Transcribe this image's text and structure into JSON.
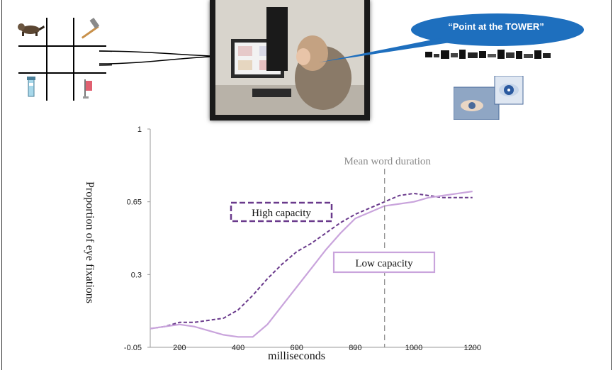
{
  "speech": {
    "quote": "“Point at the TOWER”"
  },
  "grid_icons": [
    "raccoon-icon",
    "hammer-icon",
    "tower-icon",
    "flag-icon"
  ],
  "colors": {
    "high": "#6a3a8c",
    "low": "#c9a4dc",
    "bubble": "#1e6fbe",
    "duration_line": "#888888"
  },
  "chart_data": {
    "type": "line",
    "title": "",
    "xlabel": "milliseconds",
    "ylabel": "Proportion of eye fixations",
    "xlim": [
      100,
      1220
    ],
    "ylim": [
      -0.05,
      1
    ],
    "x_ticks": [
      "200",
      "400",
      "600",
      "800",
      "1000",
      "1200"
    ],
    "y_ticks": [
      "1",
      "0.65",
      "0.3",
      "-0.05"
    ],
    "annotation": {
      "text": "Mean word duration",
      "x": 900
    },
    "series": [
      {
        "name": "High capacity",
        "style": "dashed",
        "x": [
          100,
          150,
          200,
          250,
          300,
          350,
          400,
          450,
          500,
          550,
          600,
          650,
          700,
          750,
          800,
          850,
          900,
          950,
          1000,
          1050,
          1100,
          1150,
          1200
        ],
        "y": [
          0.04,
          0.05,
          0.07,
          0.07,
          0.08,
          0.09,
          0.13,
          0.2,
          0.28,
          0.35,
          0.41,
          0.45,
          0.5,
          0.55,
          0.59,
          0.62,
          0.65,
          0.68,
          0.69,
          0.68,
          0.67,
          0.67,
          0.67
        ]
      },
      {
        "name": "Low capacity",
        "style": "solid",
        "x": [
          100,
          150,
          200,
          250,
          300,
          350,
          400,
          450,
          500,
          550,
          600,
          650,
          700,
          750,
          800,
          850,
          900,
          950,
          1000,
          1050,
          1100,
          1150,
          1200
        ],
        "y": [
          0.04,
          0.05,
          0.06,
          0.05,
          0.03,
          0.01,
          0.0,
          0.0,
          0.06,
          0.15,
          0.24,
          0.33,
          0.42,
          0.5,
          0.57,
          0.6,
          0.63,
          0.64,
          0.65,
          0.67,
          0.68,
          0.69,
          0.7
        ]
      }
    ]
  }
}
